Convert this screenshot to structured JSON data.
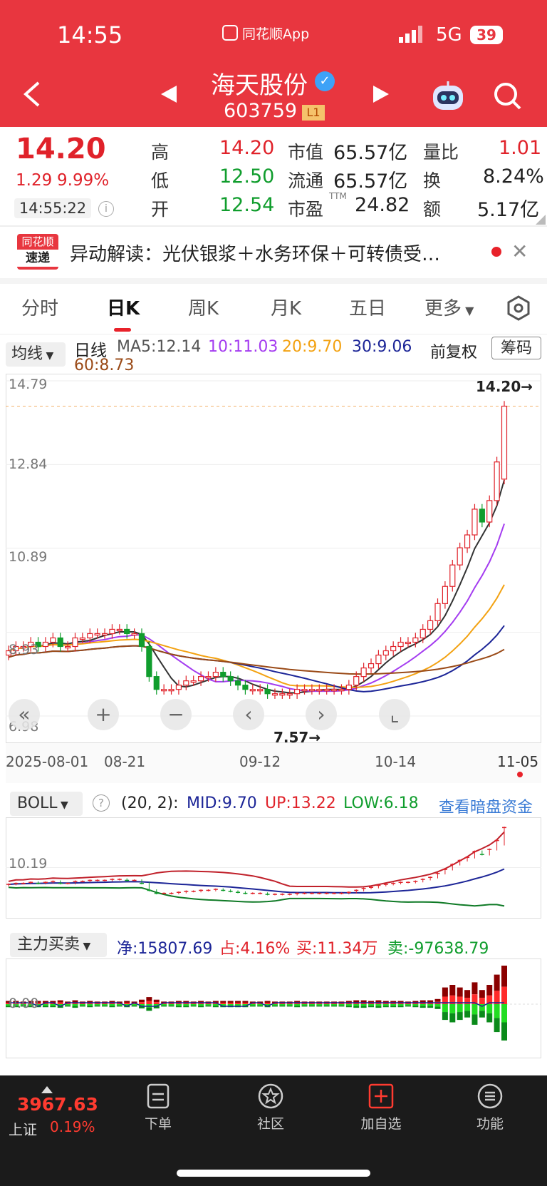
{
  "status_bar": {
    "time": "14:55",
    "app": "同花顺App",
    "network": "5G",
    "battery": "39"
  },
  "header": {
    "name": "海天股份",
    "code": "603759",
    "level": "L1"
  },
  "quote": {
    "price": "14.20",
    "change": "1.29",
    "change_pct": "9.99%",
    "time": "14:55:22",
    "high_label": "高",
    "high": "14.20",
    "low_label": "低",
    "low": "12.50",
    "open_label": "开",
    "open": "12.54",
    "mcap_label": "市值",
    "mcap": "65.57亿",
    "float_label": "流通",
    "float": "65.57亿",
    "pe_label": "市盈",
    "pe_sup": "TTM",
    "pe": "24.82",
    "vr_label": "量比",
    "vr": "1.01",
    "turnover_label": "换",
    "turnover": "8.24%",
    "amount_label": "额",
    "amount": "5.17亿"
  },
  "news": {
    "logo_top": "同花顺",
    "logo_bottom": "速递",
    "text": "异动解读：光伏银浆＋水务环保＋可转债受…"
  },
  "tabs": [
    "分时",
    "日K",
    "周K",
    "月K",
    "五日",
    "更多"
  ],
  "ma_bar": {
    "selector": "均线",
    "period": "日线",
    "ma5": "MA5:12.14",
    "ma10": "10:11.03",
    "ma20": "20:9.70",
    "ma30": "30:9.06",
    "ma60": "60:8.73",
    "adjust": "前复权",
    "chips": "筹码"
  },
  "chart_data": {
    "type": "candlestick",
    "y_ticks": [
      "14.79",
      "12.84",
      "10.89",
      "8.93",
      "6.98"
    ],
    "x_labels": [
      "2025-08-01",
      "08-21",
      "09-12",
      "10-14",
      "11-05"
    ],
    "last_price_marker": "14.20→",
    "low_marker": "7.57→",
    "closes": [
      8.5,
      8.6,
      8.6,
      8.7,
      8.6,
      8.7,
      8.8,
      8.6,
      8.6,
      8.8,
      8.8,
      8.9,
      8.9,
      8.9,
      9.0,
      9.0,
      8.9,
      8.9,
      8.6,
      7.9,
      7.6,
      7.6,
      7.6,
      7.7,
      7.8,
      7.8,
      7.9,
      7.9,
      8.0,
      7.9,
      7.8,
      7.7,
      7.6,
      7.6,
      7.6,
      7.5,
      7.5,
      7.5,
      7.5,
      7.6,
      7.6,
      7.6,
      7.6,
      7.6,
      7.6,
      7.6,
      7.7,
      7.9,
      8.1,
      8.2,
      8.4,
      8.5,
      8.6,
      8.7,
      8.7,
      8.8,
      9.0,
      9.2,
      9.6,
      10.0,
      10.5,
      10.9,
      11.2,
      11.8,
      11.5,
      12.0,
      12.9,
      14.2
    ],
    "opens": [
      8.4,
      8.5,
      8.6,
      8.6,
      8.7,
      8.6,
      8.7,
      8.8,
      8.6,
      8.6,
      8.8,
      8.8,
      8.9,
      8.9,
      8.9,
      9.0,
      9.0,
      8.9,
      8.9,
      8.6,
      7.9,
      7.6,
      7.6,
      7.6,
      7.7,
      7.8,
      7.8,
      7.9,
      7.9,
      8.0,
      7.9,
      7.8,
      7.7,
      7.6,
      7.6,
      7.6,
      7.5,
      7.5,
      7.5,
      7.5,
      7.6,
      7.6,
      7.6,
      7.6,
      7.6,
      7.6,
      7.6,
      7.7,
      7.9,
      8.1,
      8.2,
      8.4,
      8.5,
      8.6,
      8.7,
      8.7,
      8.8,
      9.0,
      9.2,
      9.6,
      10.0,
      10.5,
      10.9,
      11.2,
      11.8,
      11.5,
      12.0,
      12.5
    ]
  },
  "boll": {
    "selector": "BOLL",
    "params": "(20, 2):",
    "mid": "MID:9.70",
    "up": "UP:13.22",
    "low": "LOW:6.18",
    "link": "查看暗盘资金",
    "tick": "10.19"
  },
  "mainforce": {
    "selector": "主力买卖",
    "net": "净:15807.69",
    "pct": "占:4.16%",
    "buy": "买:11.34万",
    "sell": "卖:-97638.79",
    "tick": "0.00"
  },
  "bottom": {
    "index_value": "3967.63",
    "index_name": "上证",
    "index_pct": "0.19%",
    "nav": [
      "下单",
      "社区",
      "加自选",
      "功能"
    ]
  }
}
